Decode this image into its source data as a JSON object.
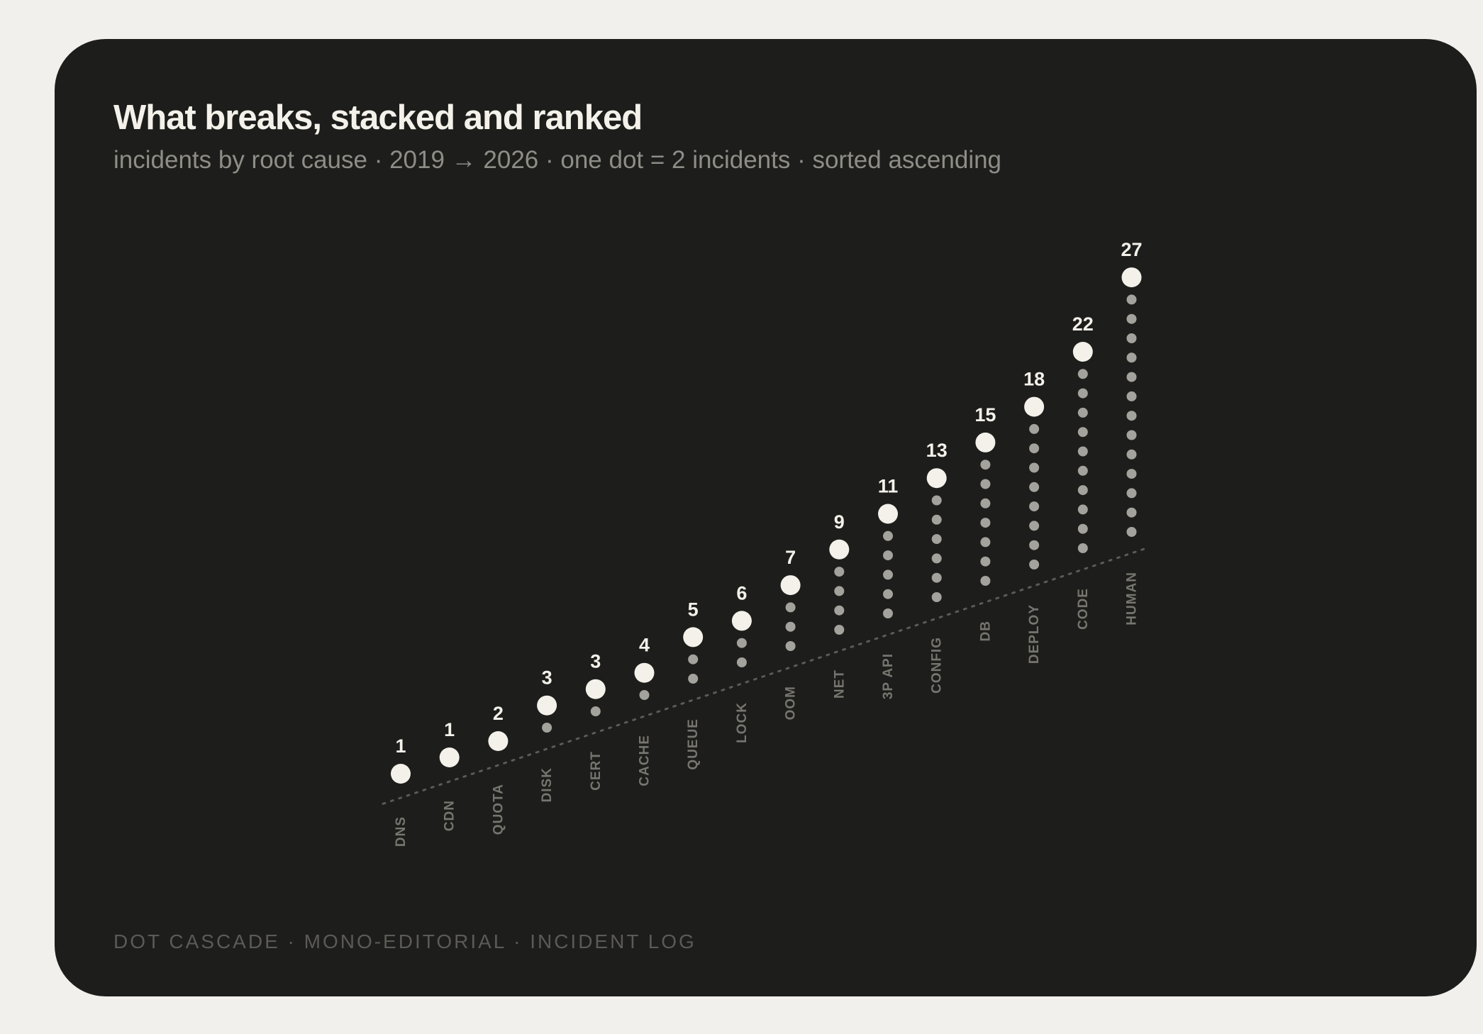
{
  "title": "What breaks, stacked and ranked",
  "subtitle": "incidents by root cause · 2019 → 2026 · one dot = 2 incidents · sorted ascending",
  "footer": "DOT CASCADE · MONO-EDITORIAL · INCIDENT LOG",
  "colors": {
    "background": "#f1f0ec",
    "card": "#1d1d1b",
    "head_dot": "#f3f1ea",
    "stack_dot": "#a3a29c",
    "baseline": "#5b5a56",
    "value_label": "#f3f1ea",
    "category_label": "#76756f"
  },
  "chart_data": {
    "type": "dot stack",
    "title": "What breaks, stacked and ranked",
    "subtitle": "incidents by root cause · 2019 → 2026 · one dot = 2 incidents · sorted ascending",
    "unit_per_dot": 2,
    "sort": "ascending",
    "categories": [
      "DNS",
      "CDN",
      "QUOTA",
      "DISK",
      "CERT",
      "CACHE",
      "QUEUE",
      "LOCK",
      "OOM",
      "NET",
      "3P API",
      "CONFIG",
      "DB",
      "DEPLOY",
      "CODE",
      "HUMAN"
    ],
    "values": [
      1,
      1,
      2,
      3,
      3,
      4,
      5,
      6,
      7,
      9,
      11,
      13,
      15,
      18,
      22,
      27
    ],
    "value_labels": [
      "1",
      "1",
      "2",
      "3",
      "3",
      "4",
      "5",
      "6",
      "7",
      "9",
      "11",
      "13",
      "15",
      "18",
      "22",
      "27"
    ],
    "grid": false,
    "legend": "none"
  }
}
